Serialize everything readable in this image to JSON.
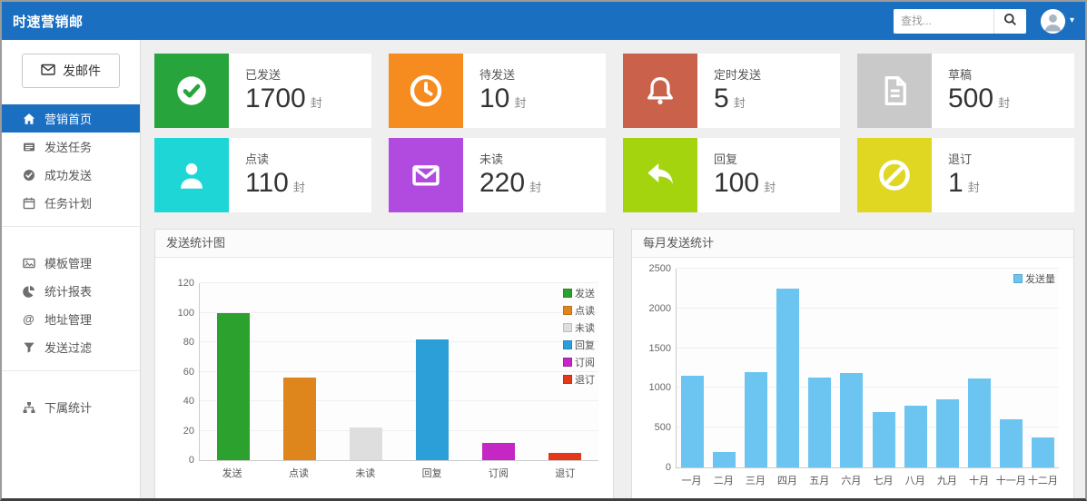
{
  "navbar": {
    "brand": "时速营销邮",
    "search_placeholder": "查找...",
    "search_icon": "search-icon",
    "user_icon": "user-avatar-icon"
  },
  "sidebar": {
    "compose_label": "发邮件",
    "compose_icon": "envelope-icon",
    "groups": [
      {
        "items": [
          {
            "label": "营销首页",
            "icon": "home",
            "active": true
          },
          {
            "label": "发送任务",
            "icon": "tasks",
            "active": false
          },
          {
            "label": "成功发送",
            "icon": "check-circle",
            "active": false
          },
          {
            "label": "任务计划",
            "icon": "calendar",
            "active": false
          }
        ]
      },
      {
        "items": [
          {
            "label": "模板管理",
            "icon": "template",
            "active": false
          },
          {
            "label": "统计报表",
            "icon": "pie",
            "active": false
          },
          {
            "label": "地址管理",
            "icon": "at",
            "active": false
          },
          {
            "label": "发送过滤",
            "icon": "filter",
            "active": false
          }
        ]
      },
      {
        "items": [
          {
            "label": "下属统计",
            "icon": "sitemap",
            "active": false
          }
        ]
      }
    ]
  },
  "cards": [
    {
      "label": "已发送",
      "value": "1700",
      "unit": "封",
      "icon": "check",
      "color": "#28a43c"
    },
    {
      "label": "待发送",
      "value": "10",
      "unit": "封",
      "icon": "clock",
      "color": "#f68b1f"
    },
    {
      "label": "定时发送",
      "value": "5",
      "unit": "封",
      "icon": "bell",
      "color": "#c9614b"
    },
    {
      "label": "草稿",
      "value": "500",
      "unit": "封",
      "icon": "document",
      "color": "#c9c9c9"
    },
    {
      "label": "点读",
      "value": "110",
      "unit": "封",
      "icon": "user",
      "color": "#1ed6d6"
    },
    {
      "label": "未读",
      "value": "220",
      "unit": "封",
      "icon": "envelope",
      "color": "#b14be0"
    },
    {
      "label": "回复",
      "value": "100",
      "unit": "封",
      "icon": "reply",
      "color": "#a3d40e"
    },
    {
      "label": "退订",
      "value": "1",
      "unit": "封",
      "icon": "ban",
      "color": "#dfd722"
    }
  ],
  "chart_data": [
    {
      "type": "bar",
      "title": "发送统计图",
      "categories": [
        "发送",
        "点读",
        "未读",
        "回复",
        "订阅",
        "退订"
      ],
      "values": [
        100,
        56,
        22,
        82,
        12,
        5
      ],
      "colors": [
        "#2da12d",
        "#de861c",
        "#dedede",
        "#2d9fd8",
        "#c427c4",
        "#e2391b"
      ],
      "legend": [
        "发送",
        "点读",
        "未读",
        "回复",
        "订阅",
        "退订"
      ],
      "legend_position": "top-right",
      "ylim": [
        0,
        120
      ],
      "yticks": [
        0,
        20,
        40,
        60,
        80,
        100,
        120
      ],
      "grid": true
    },
    {
      "type": "bar",
      "title": "每月发送统计",
      "categories": [
        "一月",
        "二月",
        "三月",
        "四月",
        "五月",
        "六月",
        "七月",
        "八月",
        "九月",
        "十月",
        "十一月",
        "十二月"
      ],
      "values": [
        1150,
        190,
        1200,
        2250,
        1130,
        1190,
        700,
        780,
        860,
        1120,
        600,
        380
      ],
      "color": "#6bc5f0",
      "legend": [
        "发送量"
      ],
      "legend_position": "top-right",
      "ylim": [
        0,
        2500
      ],
      "yticks": [
        0,
        500,
        1000,
        1500,
        2000,
        2500
      ],
      "grid": true
    }
  ]
}
